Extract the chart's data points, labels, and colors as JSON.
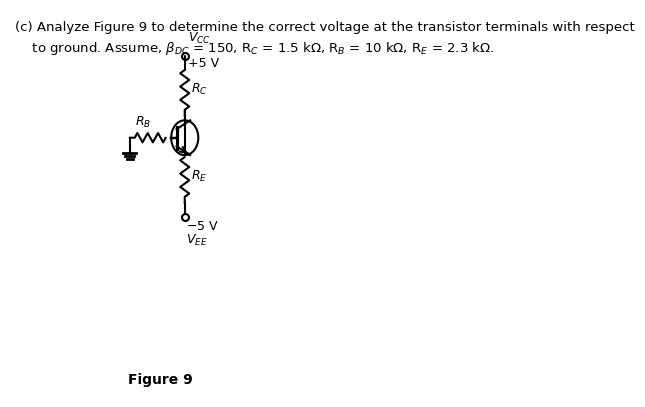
{
  "title_text": "(c) Analyze Figure 9 to determine the correct voltage at the transistor terminals with respect\n    to ground. Assume, βDC = 150, RC = 1.5 kΩ, RB = 10 kΩ, RE = 2.3 kΩ.",
  "figure_label": "Figure 9",
  "vcc_label": "VCC",
  "vcc_value": "+5 V",
  "vee_label": "VEE",
  "vee_value": "−5 V",
  "rc_label": "RC",
  "rb_label": "RB",
  "re_label": "RE",
  "bg_color": "#ffffff",
  "line_color": "#000000",
  "font_size_title": 9.5,
  "font_size_labels": 9
}
